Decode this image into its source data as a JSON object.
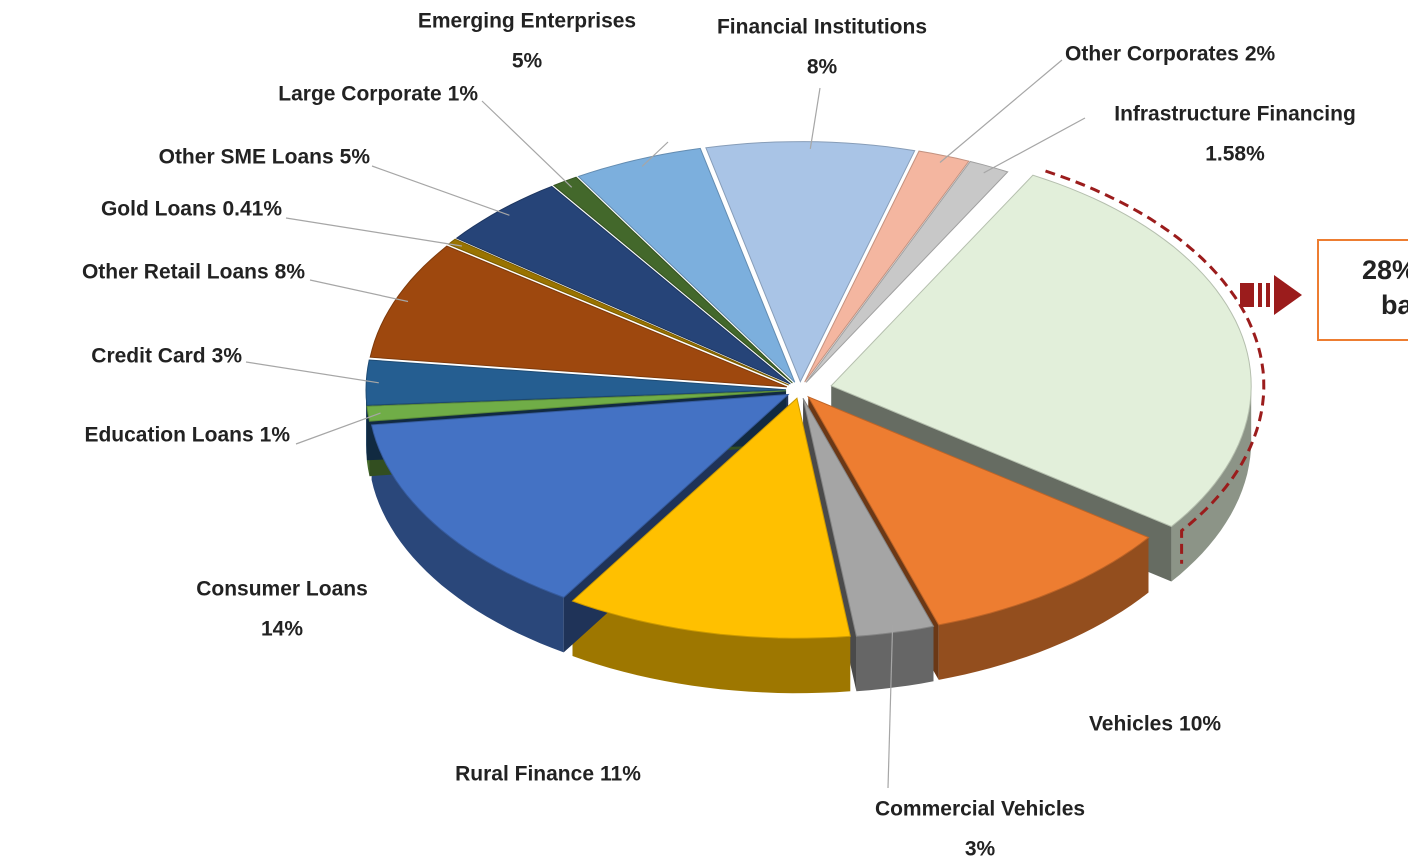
{
  "chart_data": {
    "type": "pie",
    "categories": [
      "Financial Institutions",
      "Other Corporates",
      "Infrastructure Financing",
      null,
      "Vehicles",
      "Commercial Vehicles",
      "Rural Finance",
      "Consumer Loans",
      "Education Loans",
      "Credit Card",
      "Other Retail Loans",
      "Gold Loans",
      "Other SME Loans",
      "Large Corporate",
      "Emerging Enterprises"
    ],
    "values": [
      8,
      2,
      1.58,
      27,
      10,
      3,
      11,
      14,
      1,
      3,
      8,
      0.41,
      5,
      1,
      5
    ],
    "value_labels": [
      "8%",
      "2%",
      "1.58%",
      null,
      "10%",
      "3%",
      "11%",
      "14%",
      "1%",
      "3%",
      "8%",
      "0.41%",
      "5%",
      "1%",
      "5%"
    ],
    "colors": [
      "#a9c4e6",
      "#f4b6a0",
      "#c8c8c8",
      "#e2efda",
      "#ed7d31",
      "#a5a5a5",
      "#ffc000",
      "#4472c4",
      "#70ad47",
      "#255e91",
      "#9e480e",
      "#997300",
      "#264478",
      "#43682b",
      "#7cafdd"
    ],
    "annotation": [
      "28%",
      "ba"
    ]
  }
}
